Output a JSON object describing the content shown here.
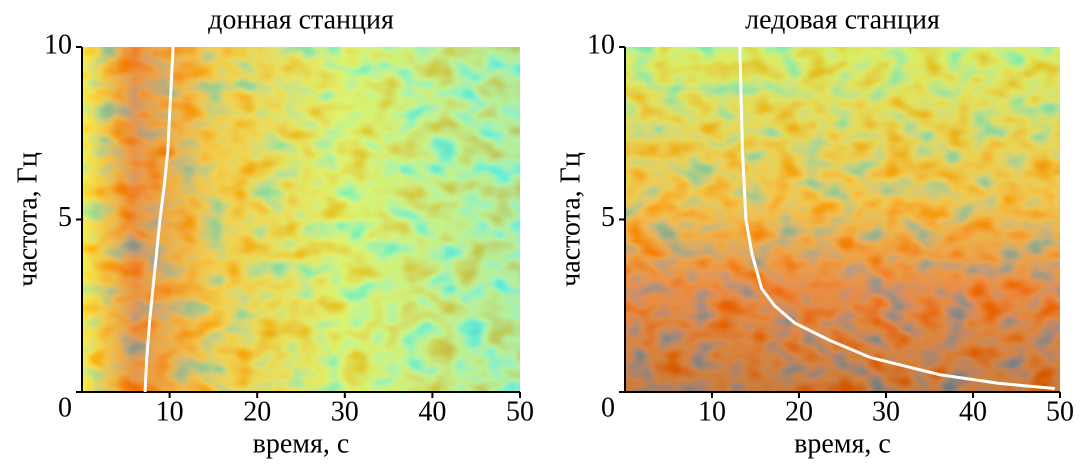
{
  "chart_data": [
    {
      "type": "line",
      "title": "донная станция",
      "xlabel": "время, с",
      "ylabel": "частота, Гц",
      "xlim": [
        0,
        50
      ],
      "ylim": [
        0,
        10
      ],
      "xticks": [
        10,
        20,
        30,
        40,
        50
      ],
      "yticks": [
        0,
        5,
        10
      ],
      "series": [
        {
          "color": "#ffffff",
          "x": [
            7.2,
            7.4,
            7.7,
            8.1,
            8.5,
            8.9,
            9.4,
            9.8,
            10.0,
            10.2,
            10.4
          ],
          "values": [
            0,
            1,
            2,
            3,
            4,
            5,
            6,
            7,
            8,
            9,
            10
          ]
        }
      ]
    },
    {
      "type": "line",
      "title": "ледовая станция",
      "xlabel": "время, с",
      "ylabel": "частота, Гц",
      "xlim": [
        0,
        50
      ],
      "ylim": [
        0,
        10
      ],
      "xticks": [
        10,
        20,
        30,
        40,
        50
      ],
      "yticks": [
        0,
        5,
        10
      ],
      "series": [
        {
          "color": "#ffffff",
          "x": [
            13.2,
            13.5,
            13.9,
            14.6,
            15.7,
            17.2,
            19.5,
            23.5,
            28.2,
            36.2,
            43.0,
            49.4
          ],
          "values": [
            10,
            7,
            5,
            4,
            3,
            2.5,
            2,
            1.5,
            1,
            0.5,
            0.25,
            0.1
          ]
        }
      ]
    }
  ]
}
